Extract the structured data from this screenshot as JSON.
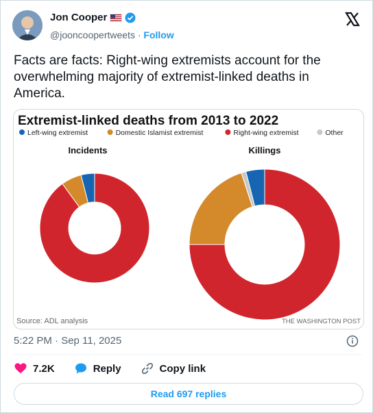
{
  "user": {
    "name": "Jon Cooper",
    "handle": "@jooncoopertweets",
    "separator": "·",
    "follow_label": "Follow"
  },
  "tweet": {
    "text": "Facts are facts: Right-wing extremists account for the overwhelming majority of extremist-linked deaths in America.",
    "timestamp": "5:22 PM · Sep 11, 2025"
  },
  "actions": {
    "likes": "7.2K",
    "reply_label": "Reply",
    "copy_link_label": "Copy link",
    "read_replies_label": "Read 697 replies"
  },
  "colors": {
    "left_wing": "#1565b3",
    "islamist": "#d4892b",
    "right_wing": "#d0252c",
    "other": "#c8c8c8",
    "accent": "#1d9bf0",
    "like": "#f91880"
  },
  "chart_data": [
    {
      "type": "pie",
      "title": "Extremist-linked deaths from 2013 to 2022",
      "legend": [
        "Left-wing extremist",
        "Domestic Islamist extremist",
        "Right-wing extremist",
        "Other"
      ],
      "legend_placement": "top",
      "subtitle": "Incidents",
      "categories": [
        "Left-wing extremist",
        "Domestic Islamist extremist",
        "Right-wing extremist",
        "Other"
      ],
      "values": [
        4,
        6,
        90,
        0
      ],
      "source": "Source: ADL analysis",
      "credit": ""
    },
    {
      "type": "pie",
      "title": "",
      "subtitle": "Killings",
      "categories": [
        "Left-wing extremist",
        "Domestic Islamist extremist",
        "Right-wing extremist",
        "Other"
      ],
      "values": [
        4,
        20,
        75,
        1
      ],
      "source": "",
      "credit": "THE WASHINGTON POST"
    }
  ]
}
